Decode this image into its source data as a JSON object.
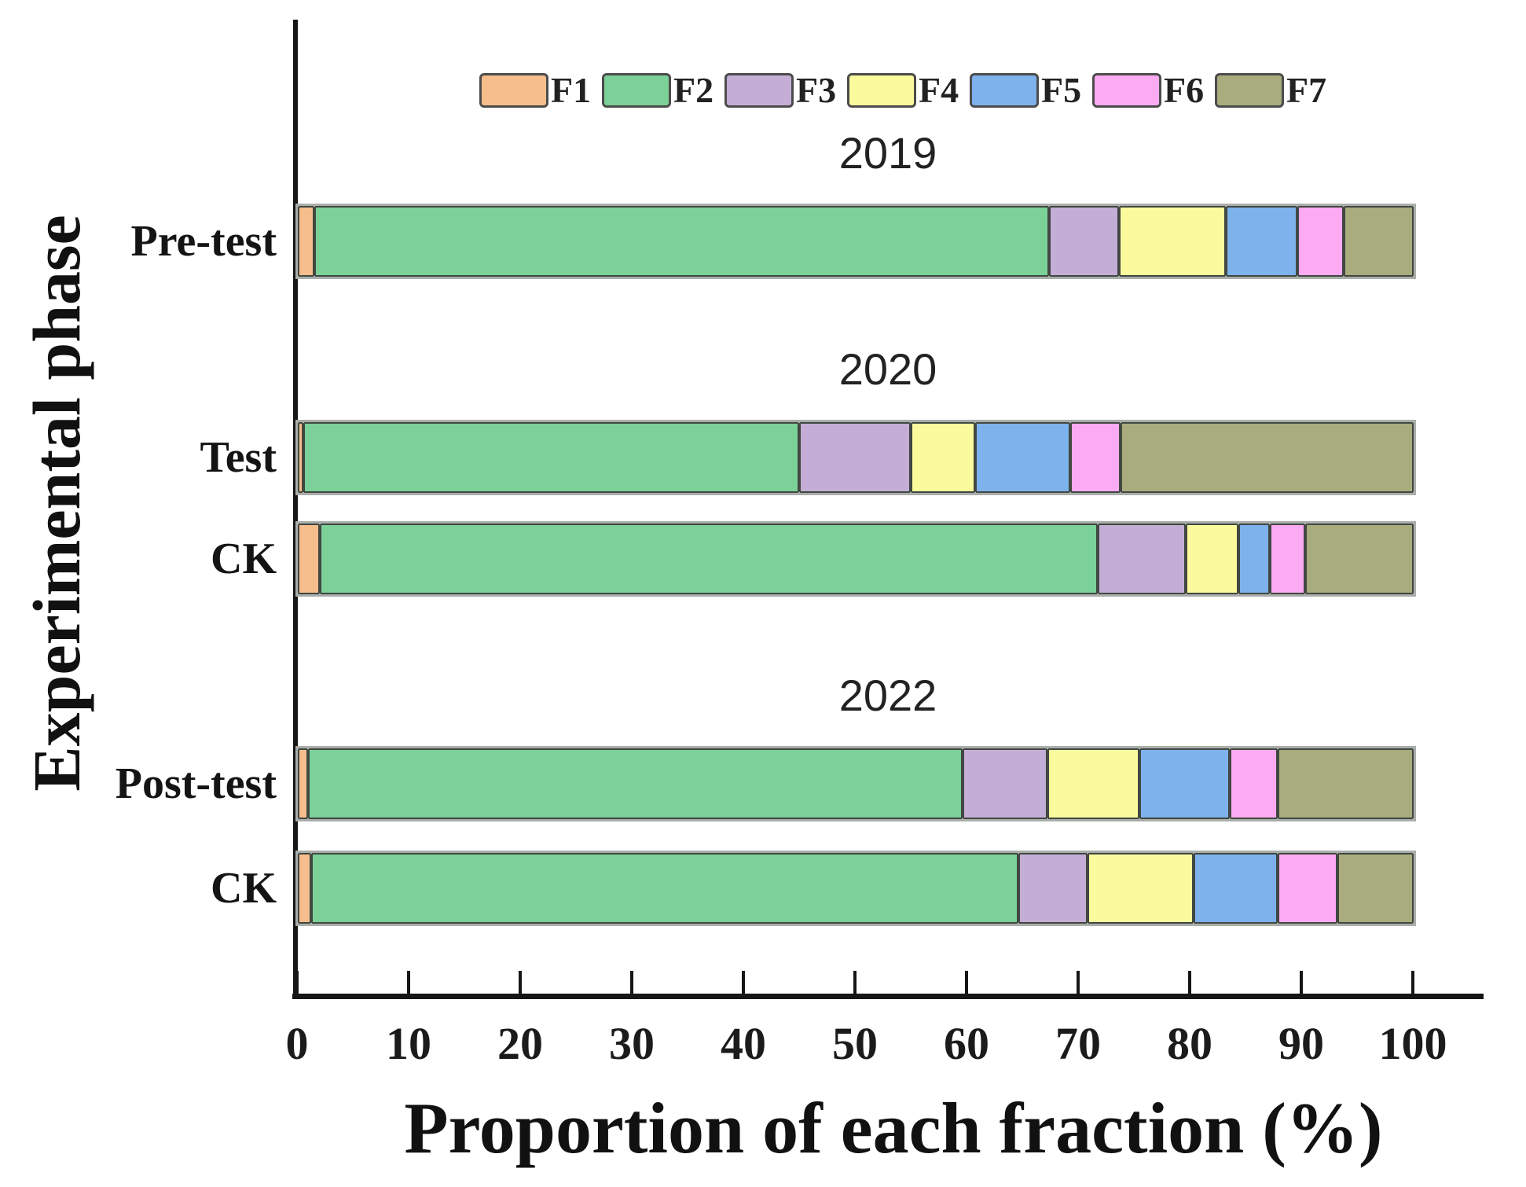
{
  "chart_data": {
    "type": "bar",
    "variant": "horizontal-stacked",
    "title": "",
    "xlabel": "Proportion of each fraction (%)",
    "ylabel": "Experimental phase",
    "xlim": [
      0,
      100
    ],
    "xticks": [
      0,
      10,
      20,
      30,
      40,
      50,
      60,
      70,
      80,
      90,
      100
    ],
    "grid": false,
    "legend_position": "top-center",
    "legend_entries": [
      "F1",
      "F2",
      "F3",
      "F4",
      "F5",
      "F6",
      "F7"
    ],
    "series_colors": {
      "F1": "#F6BE8D",
      "F2": "#7BD197",
      "F3": "#C5AED6",
      "F4": "#FBFA9D",
      "F5": "#7DB2EC",
      "F6": "#FCAAF2",
      "F7": "#A9AC7D"
    },
    "segment_border_color": "#414741",
    "categories": [
      "Pre-test",
      "Test",
      "CK",
      "Post-test",
      "CK"
    ],
    "group_labels": [
      {
        "text": "2019",
        "row_index": 0
      },
      {
        "text": "2020",
        "row_index": 1
      },
      {
        "text": "2022",
        "row_index": 3
      }
    ],
    "series": [
      {
        "name": "F1",
        "values": [
          1.5,
          0.5,
          2.0,
          0.9,
          1.2
        ]
      },
      {
        "name": "F2",
        "values": [
          65.8,
          44.4,
          69.7,
          58.7,
          63.4
        ]
      },
      {
        "name": "F3",
        "values": [
          6.3,
          10.0,
          7.9,
          7.6,
          6.2
        ]
      },
      {
        "name": "F4",
        "values": [
          9.6,
          5.8,
          4.7,
          8.2,
          9.5
        ]
      },
      {
        "name": "F5",
        "values": [
          6.4,
          8.5,
          2.8,
          8.1,
          7.5
        ]
      },
      {
        "name": "F6",
        "values": [
          4.1,
          4.5,
          3.2,
          4.3,
          5.4
        ]
      },
      {
        "name": "F7",
        "values": [
          6.3,
          26.3,
          9.7,
          12.2,
          6.8
        ]
      }
    ]
  }
}
